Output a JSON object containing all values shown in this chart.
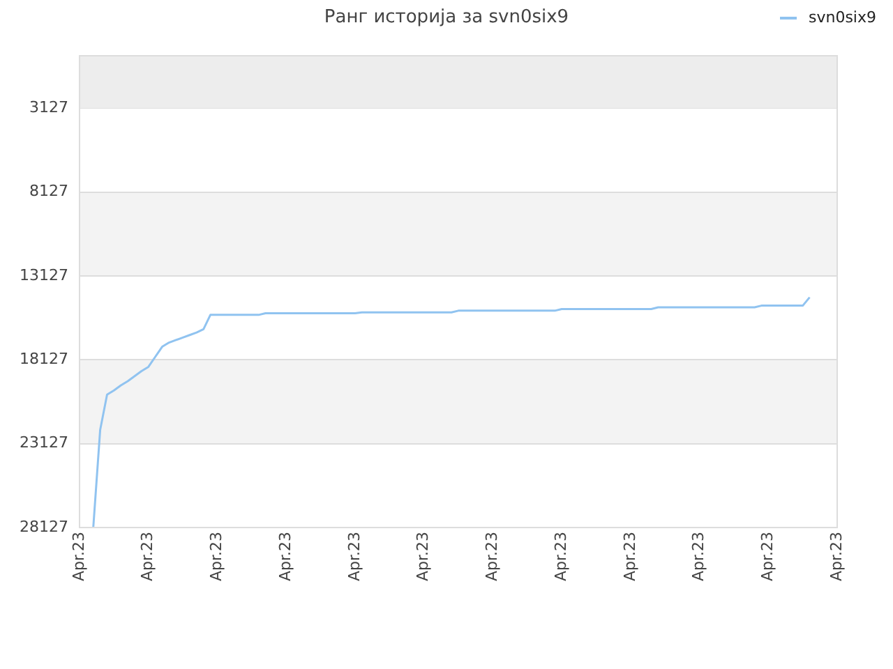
{
  "chart_data": {
    "type": "line",
    "title": "Ранг историја за svn0six9",
    "categories": [
      "Apr.23",
      null,
      null,
      null,
      null,
      null,
      null,
      null,
      null,
      null,
      "Apr.23",
      null,
      null,
      null,
      null,
      null,
      null,
      null,
      null,
      null,
      "Apr.23",
      null,
      null,
      null,
      null,
      null,
      null,
      null,
      null,
      null,
      "Apr.23",
      null,
      null,
      null,
      null,
      null,
      null,
      null,
      null,
      null,
      "Apr.23",
      null,
      null,
      null,
      null,
      null,
      null,
      null,
      null,
      null,
      "Apr.23",
      null,
      null,
      null,
      null,
      null,
      null,
      null,
      null,
      null,
      "Apr.23",
      null,
      null,
      null,
      null,
      null,
      null,
      null,
      null,
      null,
      "Apr.23",
      null,
      null,
      null,
      null,
      null,
      null,
      null,
      null,
      null,
      "Apr.23",
      null,
      null,
      null,
      null,
      null,
      null,
      null,
      null,
      null,
      "Apr.23",
      null,
      null,
      null,
      null,
      null,
      null,
      null,
      null,
      null,
      "Apr.23",
      null,
      null,
      null,
      null,
      null,
      null,
      null,
      null,
      null,
      "Apr.23"
    ],
    "series": [
      {
        "name": "svn0six9",
        "color": "#90c3f0",
        "values": [
          null,
          null,
          28100,
          22300,
          20200,
          19950,
          19650,
          19400,
          19100,
          18800,
          18550,
          17950,
          17350,
          17100,
          16950,
          16800,
          16650,
          16500,
          16300,
          15450,
          15450,
          15450,
          15450,
          15450,
          15450,
          15450,
          15450,
          15350,
          15350,
          15350,
          15350,
          15350,
          15350,
          15350,
          15350,
          15350,
          15350,
          15350,
          15350,
          15350,
          15350,
          15300,
          15300,
          15300,
          15300,
          15300,
          15300,
          15300,
          15300,
          15300,
          15300,
          15300,
          15300,
          15300,
          15300,
          15200,
          15200,
          15200,
          15200,
          15200,
          15200,
          15200,
          15200,
          15200,
          15200,
          15200,
          15200,
          15200,
          15200,
          15200,
          15100,
          15100,
          15100,
          15100,
          15100,
          15100,
          15100,
          15100,
          15100,
          15100,
          15100,
          15100,
          15100,
          15100,
          15000,
          15000,
          15000,
          15000,
          15000,
          15000,
          15000,
          15000,
          15000,
          15000,
          15000,
          15000,
          15000,
          15000,
          15000,
          14900,
          14900,
          14900,
          14900,
          14900,
          14900,
          14900,
          14400,
          null,
          null,
          null,
          null
        ]
      }
    ],
    "ylim": [
      28127,
      0
    ],
    "yticks": [
      3127,
      8127,
      13127,
      18127,
      23127,
      28127
    ],
    "bands": [
      {
        "axis": "y",
        "from": 0,
        "to": 3127,
        "color": "#ededed"
      }
    ],
    "grid": "y",
    "legend": "top right",
    "marker": "none",
    "line_style": "solid"
  }
}
